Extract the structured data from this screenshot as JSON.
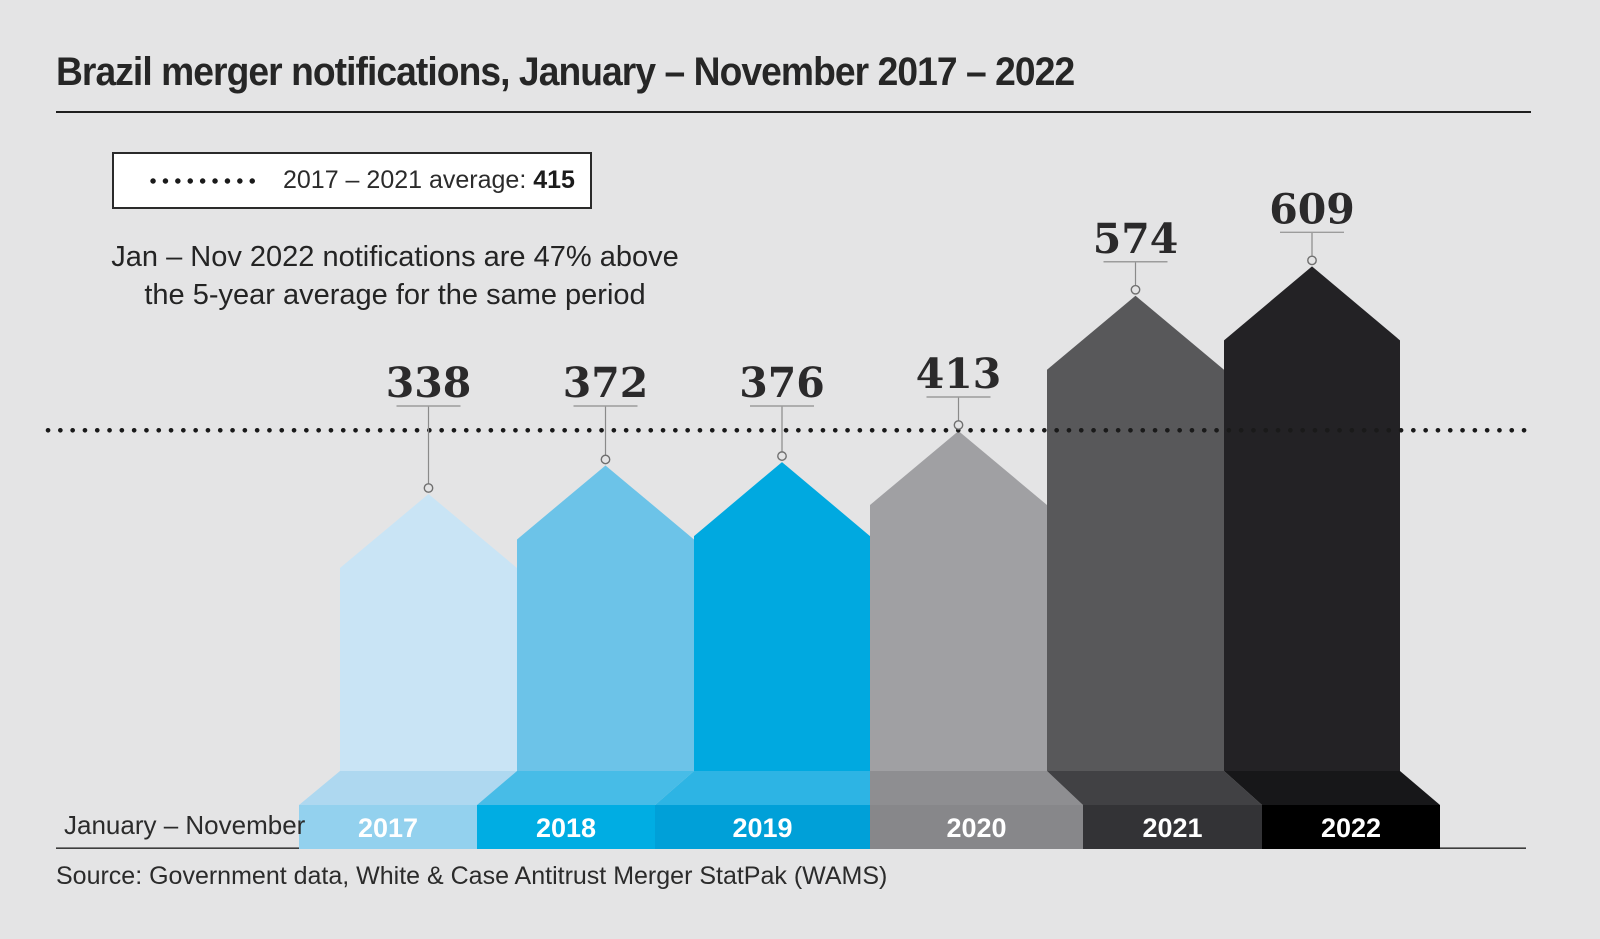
{
  "page": {
    "background": "#e4e4e5"
  },
  "header": {
    "title": "Brazil merger notifications, January – November 2017 – 2022"
  },
  "legend": {
    "label": "2017 – 2021 average:",
    "value": "415"
  },
  "annotation": {
    "line1": "Jan – Nov 2022 notifications are 47% above",
    "line2": "the 5-year average for the same period"
  },
  "axis": {
    "row_label": "January – November"
  },
  "source": {
    "text": "Source: Government data, White & Case Antitrust Merger StatPak (WAMS)"
  },
  "chart_data": {
    "type": "bar",
    "title": "Brazil merger notifications, January – November 2017 – 2022",
    "categories": [
      "2017",
      "2018",
      "2019",
      "2020",
      "2021",
      "2022"
    ],
    "values": [
      338,
      372,
      376,
      413,
      574,
      609
    ],
    "average_2017_2021": 415,
    "legend": "2017 – 2021 average: 415",
    "annotation": "Jan – Nov 2022 notifications are 47% above the 5-year average for the same period",
    "x_axis_label": "January – November",
    "gridlines": false,
    "average_line_style": "dotted",
    "average_line_color": "#1a1a1a",
    "value_label_color": "#2b2a2b",
    "year_label_color": "#ffffff",
    "marker_stroke": "#6f6f6f",
    "marker_fill": "#e4e4e5",
    "leader_color": "#8a8a8a",
    "underline_color": "#9c9c9c",
    "baseline_color": "#3d3d3d",
    "bar_styles": [
      {
        "year": "2017",
        "body": "#c9e4f5",
        "top": "#aed8f0",
        "front": "#93d1ee"
      },
      {
        "year": "2018",
        "body": "#6cc3e8",
        "top": "#47bce7",
        "front": "#00ade3"
      },
      {
        "year": "2019",
        "body": "#00a9e0",
        "top": "#2db4e4",
        "front": "#00a0d8"
      },
      {
        "year": "2020",
        "body": "#a0a0a3",
        "top": "#8e8e91",
        "front": "#87878a"
      },
      {
        "year": "2021",
        "body": "#58585a",
        "top": "#414144",
        "front": "#333336"
      },
      {
        "year": "2022",
        "body": "#232225",
        "top": "#171719",
        "front": "#000000"
      }
    ]
  }
}
